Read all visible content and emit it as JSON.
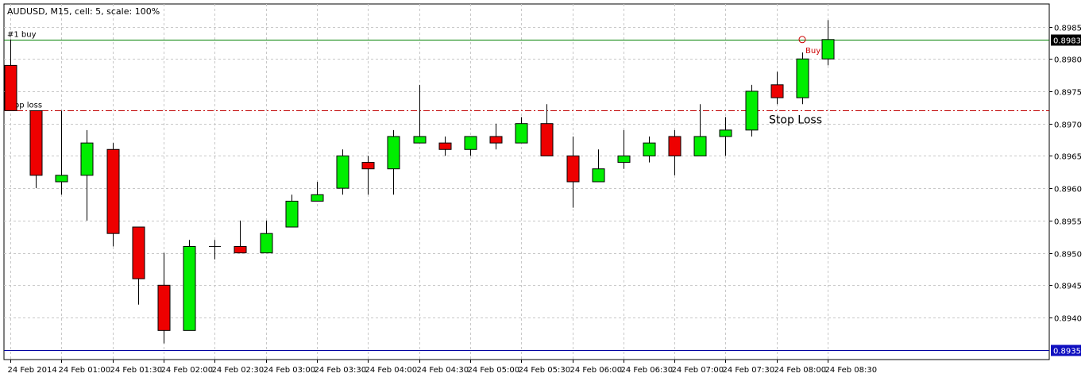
{
  "chart_data": {
    "type": "candlestick",
    "title": "AUDUSD, M15, cell: 5, scale: 100%",
    "symbol": "AUDUSD",
    "timeframe": "M15",
    "ylim": [
      0.89335,
      0.89885
    ],
    "y_ticks": [
      "0.8985",
      "0.8980",
      "0.8975",
      "0.8970",
      "0.8965",
      "0.8960",
      "0.8955",
      "0.8950",
      "0.8945",
      "0.8940"
    ],
    "x_ticks": [
      "24 Feb 2014",
      "24 Feb 01:00",
      "24 Feb 01:30",
      "24 Feb 02:00",
      "24 Feb 02:30",
      "24 Feb 03:00",
      "24 Feb 03:30",
      "24 Feb 04:00",
      "24 Feb 04:30",
      "24 Feb 05:00",
      "24 Feb 05:30",
      "24 Feb 06:00",
      "24 Feb 06:30",
      "24 Feb 07:00",
      "24 Feb 07:30",
      "24 Feb 08:00",
      "24 Feb 08:30"
    ],
    "grid": true,
    "colors": {
      "bull": "#00ee00",
      "bear": "#ee0000",
      "wick": "#000000",
      "buy_line": "#008000",
      "stop_line": "#c00000",
      "bottom_line": "#0000a0",
      "grid": "#c8c8c8"
    },
    "candles": [
      {
        "o": 0.8979,
        "h": 0.8983,
        "l": 0.8972,
        "c": 0.8972
      },
      {
        "o": 0.8972,
        "h": 0.8972,
        "l": 0.896,
        "c": 0.8962
      },
      {
        "o": 0.8961,
        "h": 0.8972,
        "l": 0.8959,
        "c": 0.8962
      },
      {
        "o": 0.8962,
        "h": 0.8969,
        "l": 0.8955,
        "c": 0.8967
      },
      {
        "o": 0.8966,
        "h": 0.8967,
        "l": 0.8951,
        "c": 0.8953
      },
      {
        "o": 0.8954,
        "h": 0.8954,
        "l": 0.8942,
        "c": 0.8946
      },
      {
        "o": 0.8945,
        "h": 0.895,
        "l": 0.8936,
        "c": 0.8938
      },
      {
        "o": 0.8938,
        "h": 0.8952,
        "l": 0.8938,
        "c": 0.8951
      },
      {
        "o": 0.8951,
        "h": 0.8952,
        "l": 0.8949,
        "c": 0.8951
      },
      {
        "o": 0.8951,
        "h": 0.8955,
        "l": 0.895,
        "c": 0.895
      },
      {
        "o": 0.895,
        "h": 0.8955,
        "l": 0.895,
        "c": 0.8953
      },
      {
        "o": 0.8954,
        "h": 0.8959,
        "l": 0.8954,
        "c": 0.8958
      },
      {
        "o": 0.8958,
        "h": 0.8961,
        "l": 0.8958,
        "c": 0.8959
      },
      {
        "o": 0.896,
        "h": 0.8966,
        "l": 0.8959,
        "c": 0.8965
      },
      {
        "o": 0.8964,
        "h": 0.8965,
        "l": 0.8959,
        "c": 0.8963
      },
      {
        "o": 0.8963,
        "h": 0.8969,
        "l": 0.8959,
        "c": 0.8968
      },
      {
        "o": 0.8967,
        "h": 0.8976,
        "l": 0.8967,
        "c": 0.8968
      },
      {
        "o": 0.8967,
        "h": 0.8968,
        "l": 0.8965,
        "c": 0.8966
      },
      {
        "o": 0.8966,
        "h": 0.8968,
        "l": 0.8965,
        "c": 0.8968
      },
      {
        "o": 0.8968,
        "h": 0.897,
        "l": 0.8966,
        "c": 0.8967
      },
      {
        "o": 0.8967,
        "h": 0.8971,
        "l": 0.8967,
        "c": 0.897
      },
      {
        "o": 0.897,
        "h": 0.8973,
        "l": 0.8965,
        "c": 0.8965
      },
      {
        "o": 0.8965,
        "h": 0.8968,
        "l": 0.8957,
        "c": 0.8961
      },
      {
        "o": 0.8961,
        "h": 0.8966,
        "l": 0.8961,
        "c": 0.8963
      },
      {
        "o": 0.8964,
        "h": 0.8969,
        "l": 0.8963,
        "c": 0.8965
      },
      {
        "o": 0.8965,
        "h": 0.8968,
        "l": 0.8964,
        "c": 0.8967
      },
      {
        "o": 0.8968,
        "h": 0.8969,
        "l": 0.8962,
        "c": 0.8965
      },
      {
        "o": 0.8965,
        "h": 0.8973,
        "l": 0.8965,
        "c": 0.8968
      },
      {
        "o": 0.8968,
        "h": 0.8971,
        "l": 0.8965,
        "c": 0.8969
      },
      {
        "o": 0.8969,
        "h": 0.8976,
        "l": 0.8968,
        "c": 0.8975
      },
      {
        "o": 0.8976,
        "h": 0.8978,
        "l": 0.8973,
        "c": 0.8974
      },
      {
        "o": 0.8974,
        "h": 0.8981,
        "l": 0.8973,
        "c": 0.898
      },
      {
        "o": 0.898,
        "h": 0.8986,
        "l": 0.8979,
        "c": 0.8983
      }
    ],
    "lines": [
      {
        "name": "buy_line",
        "label": "#1 buy",
        "value": 0.8983,
        "price_label": "0.8983",
        "style": "solid"
      },
      {
        "name": "stop_line",
        "label": "stop loss",
        "value": 0.8972,
        "style": "dashdot"
      },
      {
        "name": "bottom_line",
        "value": 0.8935,
        "price_label": "0.8935",
        "style": "solid"
      }
    ],
    "annotations": {
      "buy_marker_label": "Buy",
      "buy_marker_value": 0.8983,
      "stop_loss_text": "Stop Loss"
    }
  }
}
